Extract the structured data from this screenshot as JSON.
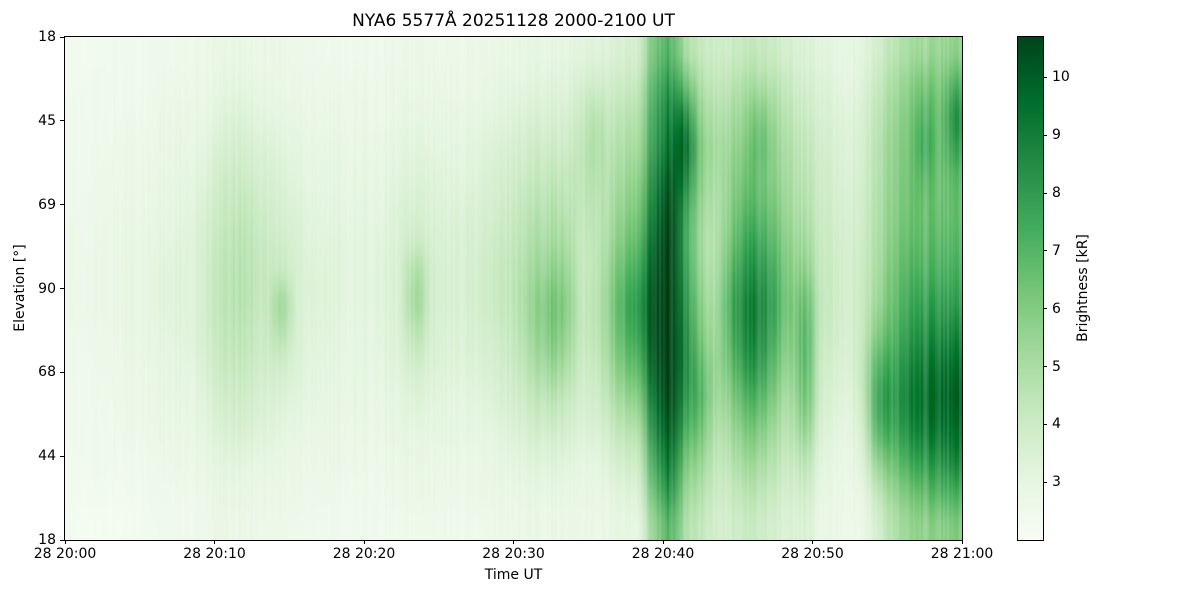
{
  "figure": {
    "title": "NYA6 5577Å 20251128 2000-2100 UT",
    "xlabel": "Time UT",
    "ylabel": "Elevation [°]",
    "colorbar_label": "Brightness [kR]"
  },
  "chart_data": {
    "type": "heatmap",
    "title": "NYA6 5577Å 20251128 2000-2100 UT",
    "xlabel": "Time UT",
    "ylabel": "Elevation [°]",
    "x_tick_labels": [
      "28 20:00",
      "28 20:10",
      "28 20:20",
      "28 20:30",
      "28 20:40",
      "28 20:50",
      "28 21:00"
    ],
    "y_tick_labels": [
      "18",
      "45",
      "69",
      "90",
      "68",
      "44",
      "18"
    ],
    "y_axis_note": "elevation scan 18° → 90° (zenith) → 18°, top to bottom",
    "colorbar": {
      "label": "Brightness [kR]",
      "tick_values": [
        10,
        9,
        8,
        7,
        6,
        5,
        4,
        3
      ],
      "vmin": 2.0,
      "vmax": 10.7,
      "colormap": "Greens"
    },
    "colormap_stops": [
      "#f7fcf5",
      "#e5f5e0",
      "#c7e9c0",
      "#a1d99b",
      "#74c476",
      "#41ab5d",
      "#238b45",
      "#006d2c",
      "#00441b"
    ],
    "time_start_ut": "2025-11-28 20:00",
    "time_end_ut": "2025-11-28 21:00",
    "grid_info": "brightness in kR; 60 one-minute columns (20:00→21:00) × 16 elevation rows (top 18° → middle 90° → bottom 18°)",
    "values_kR_columns": [
      [
        2.3,
        2.3,
        2.4,
        2.4,
        2.5,
        2.5,
        2.6,
        2.6,
        2.6,
        2.5,
        2.5,
        2.4,
        2.4,
        2.3,
        2.3,
        2.2
      ],
      [
        2.3,
        2.4,
        2.4,
        2.5,
        2.5,
        2.6,
        2.6,
        2.7,
        2.7,
        2.6,
        2.5,
        2.5,
        2.4,
        2.4,
        2.3,
        2.2
      ],
      [
        2.3,
        2.4,
        2.4,
        2.5,
        2.6,
        2.6,
        2.7,
        2.7,
        2.7,
        2.6,
        2.6,
        2.5,
        2.4,
        2.4,
        2.3,
        2.2
      ],
      [
        2.4,
        2.4,
        2.5,
        2.6,
        2.6,
        2.7,
        2.8,
        2.8,
        2.8,
        2.7,
        2.6,
        2.6,
        2.5,
        2.4,
        2.3,
        2.2
      ],
      [
        2.4,
        2.5,
        2.6,
        2.7,
        2.8,
        2.9,
        3.0,
        3.1,
        3.1,
        3.0,
        2.9,
        2.8,
        2.7,
        2.5,
        2.4,
        2.3
      ],
      [
        2.4,
        2.4,
        2.5,
        2.6,
        2.7,
        2.8,
        2.9,
        2.9,
        2.9,
        2.9,
        2.8,
        2.7,
        2.6,
        2.5,
        2.4,
        2.3
      ],
      [
        2.5,
        2.6,
        2.7,
        2.8,
        2.9,
        3.0,
        3.1,
        3.2,
        3.2,
        3.1,
        3.0,
        2.9,
        2.8,
        2.6,
        2.5,
        2.4
      ],
      [
        2.5,
        2.6,
        2.8,
        2.9,
        3.0,
        3.1,
        3.2,
        3.3,
        3.3,
        3.2,
        3.1,
        3.0,
        2.8,
        2.7,
        2.5,
        2.4
      ],
      [
        2.5,
        2.6,
        2.7,
        2.8,
        3.0,
        3.1,
        3.2,
        3.2,
        3.2,
        3.2,
        3.0,
        2.9,
        2.8,
        2.6,
        2.5,
        2.4
      ],
      [
        2.7,
        2.8,
        3.0,
        3.2,
        3.4,
        3.6,
        3.8,
        3.9,
        3.9,
        3.8,
        3.6,
        3.4,
        3.2,
        3.0,
        2.8,
        2.6
      ],
      [
        2.8,
        3.0,
        3.2,
        3.5,
        3.8,
        4.0,
        4.2,
        4.3,
        4.3,
        4.2,
        4.0,
        3.7,
        3.4,
        3.1,
        2.9,
        2.7
      ],
      [
        2.9,
        3.1,
        3.4,
        3.7,
        4.0,
        4.3,
        4.5,
        4.6,
        4.6,
        4.4,
        4.2,
        3.9,
        3.6,
        3.2,
        2.9,
        2.7
      ],
      [
        2.8,
        3.0,
        3.3,
        3.6,
        3.9,
        4.2,
        4.4,
        4.5,
        4.5,
        4.3,
        4.1,
        3.8,
        3.5,
        3.1,
        2.9,
        2.7
      ],
      [
        2.7,
        2.9,
        3.1,
        3.4,
        3.6,
        3.8,
        4.0,
        4.1,
        4.1,
        4.0,
        3.8,
        3.5,
        3.3,
        3.0,
        2.8,
        2.6
      ],
      [
        2.7,
        2.8,
        3.0,
        3.2,
        3.4,
        3.6,
        3.8,
        4.2,
        5.3,
        4.6,
        3.8,
        3.4,
        3.1,
        2.9,
        2.7,
        2.6
      ],
      [
        2.6,
        2.7,
        2.9,
        3.1,
        3.2,
        3.4,
        3.5,
        3.6,
        3.6,
        3.5,
        3.4,
        3.2,
        3.0,
        2.8,
        2.7,
        2.5
      ],
      [
        2.6,
        2.7,
        2.8,
        3.0,
        3.1,
        3.2,
        3.3,
        3.4,
        3.4,
        3.3,
        3.2,
        3.1,
        2.9,
        2.8,
        2.6,
        2.5
      ],
      [
        2.5,
        2.6,
        2.8,
        2.9,
        3.0,
        3.1,
        3.2,
        3.3,
        3.3,
        3.2,
        3.1,
        3.0,
        2.9,
        2.7,
        2.6,
        2.4
      ],
      [
        2.5,
        2.6,
        2.7,
        2.9,
        3.0,
        3.1,
        3.2,
        3.2,
        3.2,
        3.1,
        3.0,
        2.9,
        2.8,
        2.7,
        2.5,
        2.4
      ],
      [
        2.5,
        2.6,
        2.7,
        2.8,
        2.9,
        3.0,
        3.1,
        3.1,
        3.1,
        3.0,
        3.0,
        2.9,
        2.8,
        2.6,
        2.5,
        2.4
      ],
      [
        2.5,
        2.6,
        2.7,
        2.9,
        3.0,
        3.1,
        3.2,
        3.2,
        3.2,
        3.1,
        3.0,
        2.9,
        2.8,
        2.6,
        2.5,
        2.4
      ],
      [
        2.6,
        2.7,
        2.8,
        3.0,
        3.1,
        3.2,
        3.3,
        3.4,
        3.4,
        3.3,
        3.2,
        3.0,
        2.9,
        2.7,
        2.6,
        2.5
      ],
      [
        2.6,
        2.7,
        2.9,
        3.1,
        3.2,
        3.4,
        3.5,
        3.6,
        3.6,
        3.5,
        3.3,
        3.1,
        3.0,
        2.8,
        2.6,
        2.5
      ],
      [
        2.7,
        2.8,
        3.0,
        3.2,
        3.4,
        3.6,
        4.0,
        5.0,
        5.3,
        4.5,
        3.8,
        3.4,
        3.1,
        2.9,
        2.7,
        2.5
      ],
      [
        2.6,
        2.8,
        2.9,
        3.1,
        3.3,
        3.4,
        3.6,
        3.7,
        3.7,
        3.6,
        3.4,
        3.2,
        3.0,
        2.8,
        2.7,
        2.5
      ],
      [
        2.6,
        2.7,
        2.9,
        3.0,
        3.2,
        3.3,
        3.4,
        3.5,
        3.5,
        3.4,
        3.3,
        3.1,
        3.0,
        2.8,
        2.6,
        2.5
      ],
      [
        2.6,
        2.7,
        2.9,
        3.1,
        3.2,
        3.4,
        3.5,
        3.5,
        3.5,
        3.4,
        3.3,
        3.1,
        3.0,
        2.8,
        2.6,
        2.5
      ],
      [
        2.7,
        2.8,
        3.0,
        3.2,
        3.3,
        3.5,
        3.6,
        3.7,
        3.7,
        3.6,
        3.4,
        3.2,
        3.0,
        2.8,
        2.7,
        2.5
      ],
      [
        2.7,
        2.9,
        3.1,
        3.3,
        3.5,
        3.6,
        3.8,
        3.9,
        3.9,
        3.7,
        3.5,
        3.3,
        3.1,
        2.9,
        2.7,
        2.6
      ],
      [
        2.8,
        3.0,
        3.2,
        3.5,
        3.7,
        3.9,
        4.1,
        4.2,
        4.2,
        4.0,
        3.8,
        3.6,
        3.3,
        3.0,
        2.8,
        2.6
      ],
      [
        2.9,
        3.1,
        3.4,
        3.7,
        4.0,
        4.3,
        4.5,
        4.7,
        4.8,
        4.6,
        4.3,
        3.9,
        3.5,
        3.2,
        2.9,
        2.7
      ],
      [
        3.0,
        3.2,
        3.5,
        3.9,
        4.2,
        4.6,
        4.9,
        5.3,
        5.6,
        5.4,
        4.9,
        4.3,
        3.8,
        3.3,
        3.0,
        2.8
      ],
      [
        3.0,
        3.3,
        3.6,
        4.0,
        4.4,
        4.8,
        5.2,
        5.8,
        6.4,
        6.2,
        5.5,
        4.6,
        3.9,
        3.4,
        3.0,
        2.8
      ],
      [
        3.0,
        3.2,
        3.5,
        3.8,
        4.2,
        4.5,
        4.9,
        5.4,
        5.8,
        5.5,
        4.9,
        4.2,
        3.7,
        3.2,
        2.9,
        2.7
      ],
      [
        3.2,
        3.6,
        4.0,
        4.3,
        4.4,
        4.3,
        4.2,
        4.2,
        4.3,
        4.2,
        4.0,
        3.7,
        3.4,
        3.1,
        2.9,
        2.7
      ],
      [
        3.3,
        3.8,
        4.6,
        4.9,
        4.7,
        4.5,
        4.4,
        4.4,
        4.5,
        4.4,
        4.1,
        3.8,
        3.5,
        3.1,
        2.9,
        2.7
      ],
      [
        3.4,
        3.8,
        4.2,
        4.5,
        4.7,
        4.9,
        5.2,
        5.6,
        5.8,
        5.6,
        5.2,
        4.6,
        4.0,
        3.5,
        3.1,
        2.9
      ],
      [
        3.6,
        4.0,
        4.5,
        4.9,
        5.3,
        5.7,
        6.2,
        6.8,
        7.3,
        7.0,
        6.3,
        5.4,
        4.5,
        3.8,
        3.3,
        3.0
      ],
      [
        3.8,
        4.3,
        4.8,
        5.2,
        5.7,
        6.2,
        6.8,
        7.5,
        8.0,
        7.7,
        6.9,
        5.9,
        4.9,
        4.1,
        3.5,
        3.1
      ],
      [
        6.5,
        7.2,
        7.8,
        8.2,
        8.8,
        9.4,
        9.9,
        10.3,
        10.5,
        10.5,
        10.2,
        9.6,
        8.8,
        7.8,
        6.8,
        5.8
      ],
      [
        7.0,
        8.0,
        8.8,
        9.4,
        10.0,
        10.4,
        10.6,
        10.6,
        10.6,
        10.6,
        10.6,
        10.5,
        10.0,
        9.2,
        8.2,
        7.0
      ],
      [
        5.0,
        6.5,
        8.5,
        9.6,
        8.8,
        7.8,
        7.5,
        7.8,
        8.2,
        8.5,
        8.5,
        8.0,
        7.2,
        6.2,
        5.4,
        4.8
      ],
      [
        4.2,
        4.8,
        5.5,
        6.0,
        5.8,
        5.4,
        5.2,
        5.4,
        5.8,
        6.2,
        6.8,
        7.0,
        6.4,
        5.5,
        4.8,
        4.3
      ],
      [
        3.8,
        4.2,
        4.6,
        4.9,
        4.8,
        4.6,
        4.5,
        4.6,
        4.8,
        5.0,
        5.2,
        5.0,
        4.6,
        4.2,
        3.9,
        3.6
      ],
      [
        4.0,
        4.5,
        5.0,
        5.4,
        5.6,
        5.8,
        6.2,
        6.8,
        7.2,
        7.0,
        6.5,
        5.8,
        5.2,
        4.6,
        4.1,
        3.8
      ],
      [
        4.2,
        4.8,
        5.4,
        5.9,
        6.3,
        6.8,
        7.4,
        8.0,
        8.5,
        8.4,
        7.8,
        6.9,
        6.0,
        5.2,
        4.5,
        4.0
      ],
      [
        4.3,
        5.0,
        6.2,
        6.8,
        6.6,
        6.9,
        7.6,
        8.3,
        8.8,
        8.6,
        8.0,
        7.1,
        6.1,
        5.2,
        4.5,
        4.0
      ],
      [
        4.0,
        4.6,
        5.2,
        5.6,
        5.8,
        6.2,
        6.7,
        7.2,
        7.5,
        7.2,
        6.6,
        5.9,
        5.2,
        4.6,
        4.1,
        3.7
      ],
      [
        3.6,
        4.0,
        4.4,
        4.7,
        4.9,
        5.1,
        5.4,
        5.7,
        5.9,
        5.7,
        5.3,
        4.8,
        4.4,
        4.0,
        3.6,
        3.4
      ],
      [
        3.4,
        3.7,
        4.0,
        4.3,
        4.5,
        4.8,
        5.2,
        5.8,
        6.6,
        6.9,
        6.8,
        6.4,
        5.6,
        4.6,
        3.9,
        3.5
      ],
      [
        3.2,
        3.4,
        3.6,
        3.8,
        3.9,
        4.0,
        4.1,
        4.2,
        4.3,
        4.2,
        4.0,
        3.8,
        3.5,
        3.2,
        3.0,
        2.8
      ],
      [
        3.0,
        3.2,
        3.4,
        3.5,
        3.6,
        3.7,
        3.8,
        3.9,
        3.9,
        3.8,
        3.6,
        3.4,
        3.2,
        3.0,
        2.8,
        2.7
      ],
      [
        3.0,
        3.1,
        3.3,
        3.4,
        3.5,
        3.6,
        3.7,
        3.7,
        3.7,
        3.6,
        3.5,
        3.3,
        3.1,
        2.9,
        2.8,
        2.6
      ],
      [
        3.2,
        3.4,
        3.6,
        3.7,
        3.8,
        3.9,
        4.0,
        4.1,
        4.2,
        4.3,
        4.5,
        4.4,
        4.0,
        3.5,
        3.1,
        2.8
      ],
      [
        3.8,
        4.2,
        4.5,
        4.7,
        4.8,
        4.9,
        5.0,
        5.2,
        5.5,
        6.2,
        7.2,
        7.8,
        7.2,
        5.8,
        4.5,
        3.8
      ],
      [
        4.5,
        5.0,
        5.4,
        5.6,
        5.7,
        5.8,
        6.0,
        6.3,
        6.6,
        7.0,
        7.5,
        7.8,
        7.4,
        6.5,
        5.5,
        4.8
      ],
      [
        5.0,
        5.6,
        6.0,
        6.2,
        6.3,
        6.4,
        6.6,
        7.0,
        7.4,
        7.9,
        8.5,
        8.8,
        8.4,
        7.4,
        6.2,
        5.4
      ],
      [
        5.2,
        6.2,
        7.0,
        7.4,
        6.8,
        6.5,
        6.6,
        7.0,
        7.6,
        8.2,
        8.8,
        9.2,
        8.8,
        7.8,
        6.6,
        5.6
      ],
      [
        5.4,
        6.0,
        6.4,
        6.5,
        6.4,
        6.5,
        6.8,
        7.2,
        7.8,
        8.5,
        9.2,
        9.6,
        9.2,
        8.2,
        7.0,
        5.8
      ],
      [
        5.6,
        7.0,
        8.2,
        7.6,
        6.8,
        6.6,
        6.8,
        7.2,
        7.8,
        8.6,
        9.4,
        9.8,
        9.4,
        8.6,
        7.2,
        6.0
      ]
    ]
  }
}
